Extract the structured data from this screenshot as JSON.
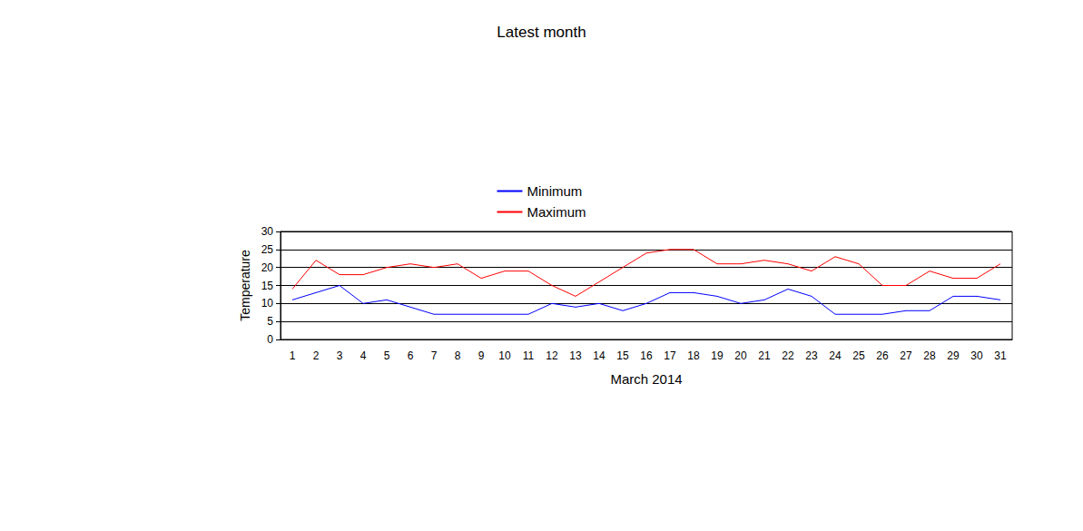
{
  "chart_data": {
    "type": "line",
    "title": "Latest month",
    "x_label": "March 2014",
    "y_label": "Temperature",
    "categories": [
      1,
      2,
      3,
      4,
      5,
      6,
      7,
      8,
      9,
      10,
      11,
      12,
      13,
      14,
      15,
      16,
      17,
      18,
      19,
      20,
      21,
      22,
      23,
      24,
      25,
      26,
      27,
      28,
      29,
      30,
      31
    ],
    "series": [
      {
        "name": "Minimum",
        "color": "#0000ff",
        "values": [
          11,
          13,
          15,
          10,
          11,
          9,
          7,
          7,
          7,
          7,
          7,
          10,
          9,
          10,
          8,
          10,
          13,
          13,
          12,
          10,
          11,
          14,
          12,
          7,
          7,
          7,
          8,
          8,
          12,
          12,
          11
        ]
      },
      {
        "name": "Maximum",
        "color": "#ff0000",
        "values": [
          14,
          22,
          18,
          18,
          20,
          21,
          20,
          21,
          17,
          19,
          19,
          15,
          12,
          16,
          20,
          24,
          25,
          25,
          21,
          21,
          22,
          21,
          19,
          23,
          21,
          15,
          15,
          19,
          17,
          17,
          21
        ]
      }
    ],
    "ylim": [
      0,
      30
    ],
    "yticks": [
      0,
      5,
      10,
      15,
      20,
      25,
      30
    ],
    "grid": true,
    "legend": "top",
    "marker": "none"
  }
}
